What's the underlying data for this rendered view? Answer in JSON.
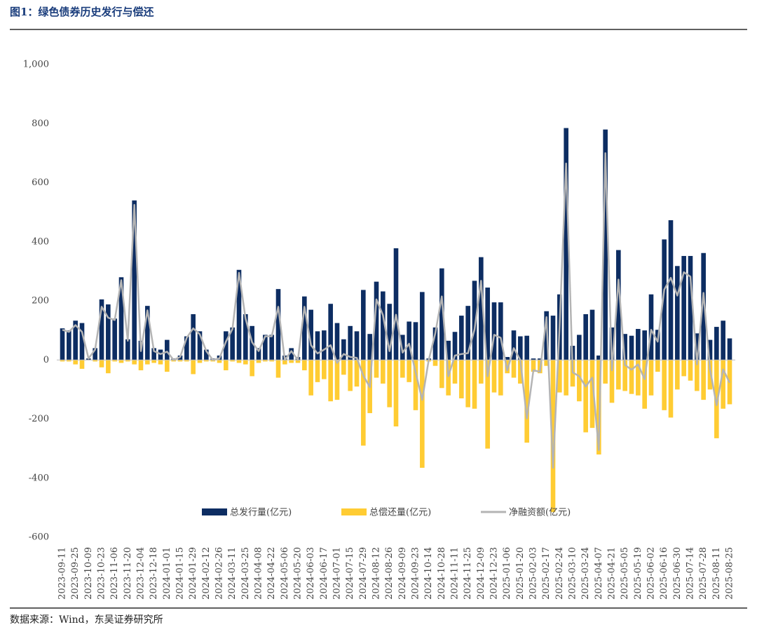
{
  "chart_data": {
    "type": "bar_line",
    "title": "图1：绿色债券历史发行与偿还",
    "source": "数据来源：Wind，东吴证券研究所",
    "categories": [
      "2023-09-11",
      null,
      "2023-09-25",
      null,
      "2023-10-09",
      null,
      "2023-10-23",
      null,
      "2023-11-06",
      null,
      "2023-11-20",
      null,
      "2023-12-04",
      null,
      "2023-12-18",
      null,
      "2024-01-01",
      null,
      "2024-01-15",
      null,
      "2024-01-29",
      null,
      "2024-02-12",
      null,
      "2024-02-26",
      null,
      "2024-03-11",
      null,
      "2024-03-25",
      null,
      "2024-04-08",
      null,
      "2024-04-22",
      null,
      "2024-05-06",
      null,
      "2024-05-20",
      null,
      "2024-06-03",
      null,
      "2024-06-17",
      null,
      "2024-07-01",
      null,
      "2024-07-15",
      null,
      "2024-07-29",
      null,
      "2024-08-12",
      null,
      "2024-08-26",
      null,
      "2024-09-09",
      null,
      "2024-09-23",
      null,
      "2024-10-14",
      null,
      "2024-10-28",
      null,
      "2024-11-11",
      null,
      "2024-11-25",
      null,
      "2024-12-09",
      null,
      "2024-12-23",
      null,
      "2025-01-06",
      null,
      "2025-01-20",
      null,
      "2025-02-03",
      null,
      "2025-02-17",
      null,
      "2025-02-24",
      null,
      "2025-03-10",
      null,
      "2025-03-24",
      null,
      "2025-04-07",
      null,
      "2025-04-21",
      null,
      "2025-05-05",
      null,
      "2025-05-19",
      null,
      "2025-06-02",
      null,
      "2025-06-16",
      null,
      "2025-06-30",
      null,
      "2025-07-14",
      null,
      "2025-07-28",
      null,
      "2025-08-11",
      null,
      "2025-08-25"
    ],
    "series": [
      {
        "name": "总发行量(亿元)",
        "type": "bar",
        "color": "#0d2d62",
        "values": [
          107,
          100,
          133,
          125,
          5,
          40,
          205,
          188,
          140,
          280,
          70,
          540,
          65,
          183,
          40,
          35,
          68,
          5,
          15,
          80,
          155,
          97,
          35,
          5,
          15,
          97,
          110,
          305,
          155,
          115,
          40,
          85,
          85,
          240,
          15,
          40,
          10,
          215,
          170,
          97,
          100,
          190,
          125,
          70,
          115,
          97,
          237,
          88,
          265,
          232,
          190,
          378,
          85,
          130,
          128,
          230,
          5,
          110,
          310,
          65,
          95,
          150,
          183,
          268,
          348,
          245,
          195,
          195,
          10,
          100,
          80,
          82,
          5,
          5,
          165,
          150,
          222,
          785,
          48,
          85,
          155,
          170,
          15,
          780,
          110,
          372,
          88,
          82,
          105,
          100,
          222,
          102,
          408,
          473,
          318,
          352,
          352,
          90,
          362,
          68,
          112,
          133,
          73
        ]
      },
      {
        "name": "总偿还量(亿元)",
        "type": "bar",
        "color": "#ffcc33",
        "values": [
          -5,
          -5,
          -15,
          -30,
          0,
          -5,
          -25,
          -45,
          -5,
          -10,
          -5,
          -15,
          -35,
          -15,
          -10,
          -15,
          -40,
          -5,
          -5,
          -5,
          -48,
          -10,
          -5,
          -5,
          -10,
          -35,
          -5,
          -10,
          -15,
          -55,
          -10,
          -5,
          -5,
          -60,
          -15,
          -10,
          -10,
          -35,
          -120,
          -75,
          -65,
          -140,
          -135,
          -50,
          -105,
          -90,
          -290,
          -180,
          -60,
          -80,
          -160,
          -225,
          -60,
          -75,
          -170,
          -365,
          -5,
          -20,
          -95,
          -120,
          -80,
          -130,
          -160,
          -165,
          -80,
          -300,
          -110,
          -120,
          -45,
          -60,
          -80,
          -280,
          -40,
          -45,
          -20,
          -515,
          -110,
          -120,
          -90,
          -140,
          -245,
          -230,
          -320,
          -80,
          -145,
          -100,
          -105,
          -115,
          -120,
          -165,
          -120,
          -40,
          -170,
          -195,
          -100,
          -55,
          -70,
          -105,
          -135,
          -100,
          -265,
          -165,
          -150
        ]
      },
      {
        "name": "净融资额(亿元)",
        "type": "line",
        "color": "#b4b4b4",
        "values": [
          102,
          95,
          118,
          95,
          5,
          35,
          180,
          143,
          135,
          270,
          65,
          525,
          30,
          168,
          30,
          20,
          28,
          0,
          10,
          75,
          107,
          87,
          30,
          0,
          5,
          62,
          105,
          295,
          140,
          60,
          30,
          80,
          80,
          180,
          0,
          30,
          0,
          180,
          50,
          22,
          35,
          50,
          -10,
          20,
          10,
          7,
          -53,
          -92,
          205,
          152,
          30,
          153,
          25,
          55,
          -42,
          -135,
          0,
          90,
          215,
          -55,
          15,
          20,
          23,
          103,
          268,
          -55,
          85,
          75,
          -35,
          40,
          0,
          -198,
          -35,
          -40,
          145,
          -365,
          112,
          665,
          -42,
          -55,
          -90,
          -60,
          -305,
          700,
          -35,
          272,
          -17,
          -33,
          -15,
          -65,
          102,
          62,
          238,
          278,
          218,
          297,
          282,
          -15,
          227,
          -32,
          -153,
          -32,
          -77
        ]
      }
    ],
    "ylim": [
      -600,
      1000
    ],
    "yticks": [
      {
        "value": 1000,
        "label": "1,000"
      },
      800,
      600,
      400,
      200,
      0,
      -200,
      -400,
      -600
    ],
    "legend": "bottom"
  }
}
